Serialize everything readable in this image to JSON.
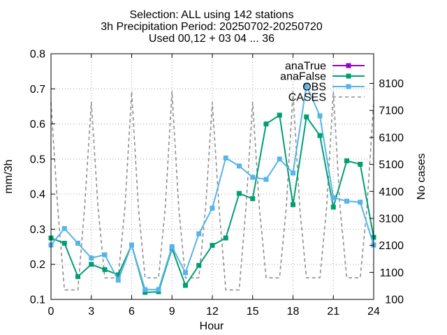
{
  "chart_data": {
    "type": "line",
    "title_lines": [
      "Selection: ALL using   142 stations",
      "3h Precipitation   Period: 20250702-20250720",
      "Used 00,12 + 03 04 ... 36"
    ],
    "xlabel": "Hour",
    "ylabel": "mm/3h",
    "y2label": "No cases",
    "xlim": [
      0,
      24
    ],
    "ylim": [
      0.1,
      0.8
    ],
    "y2lim": [
      100,
      9200
    ],
    "xticks": [
      "0",
      "3",
      "6",
      "9",
      "12",
      "15",
      "18",
      "21",
      "24"
    ],
    "yticks": [
      "0.1",
      "0.2",
      "0.3",
      "0.4",
      "0.5",
      "0.6",
      "0.7",
      "0.8"
    ],
    "y2ticks": [
      "100",
      "1100",
      "2100",
      "3100",
      "4100",
      "5100",
      "6100",
      "7100",
      "8100"
    ],
    "grid": true,
    "legend_position": "top-right",
    "series": [
      {
        "name": "anaTrue",
        "color": "#9400d3",
        "axis": "y",
        "x": [],
        "values": []
      },
      {
        "name": "anaFalse",
        "color": "#009e73",
        "axis": "y",
        "x": [
          0,
          1,
          2,
          3,
          4,
          5,
          6,
          7,
          8,
          9,
          10,
          11,
          12,
          13,
          14,
          15,
          16,
          17,
          18,
          19,
          20,
          21,
          22,
          23,
          24
        ],
        "values": [
          0.275,
          0.26,
          0.165,
          0.2,
          0.185,
          0.17,
          0.255,
          0.12,
          0.122,
          0.245,
          0.14,
          0.197,
          0.254,
          0.275,
          0.402,
          0.387,
          0.6,
          0.625,
          0.37,
          0.62,
          0.567,
          0.363,
          0.495,
          0.485,
          0.277
        ]
      },
      {
        "name": "OBS",
        "color": "#56b4e9",
        "axis": "y",
        "x": [
          0,
          1,
          2,
          3,
          4,
          5,
          6,
          7,
          8,
          9,
          10,
          11,
          12,
          13,
          14,
          15,
          16,
          17,
          18,
          19,
          20,
          21,
          22,
          23,
          24
        ],
        "values": [
          0.255,
          0.302,
          0.26,
          0.218,
          0.227,
          0.155,
          0.255,
          0.128,
          0.128,
          0.25,
          0.176,
          0.287,
          0.36,
          0.503,
          0.48,
          0.448,
          0.442,
          0.5,
          0.46,
          0.71,
          0.623,
          0.39,
          0.38,
          0.377,
          0.255
        ]
      },
      {
        "name": "CASES",
        "color": "#909090",
        "axis": "y2",
        "dashed": true,
        "x": [
          0,
          0.5,
          1,
          1.5,
          2,
          2.5,
          3,
          3.5,
          4,
          4.5,
          5,
          5.5,
          6,
          6.5,
          7,
          7.5,
          8,
          8.5,
          9,
          9.5,
          10,
          10.5,
          11,
          11.5,
          12,
          12.5,
          13,
          13.5,
          14,
          14.5,
          15,
          15.5,
          16,
          16.5,
          17,
          17.5,
          18,
          18.5,
          19,
          19.5,
          20,
          20.5,
          21,
          21.5,
          22,
          22.5,
          23,
          23.5,
          24
        ],
        "values": [
          7400,
          3500,
          450,
          450,
          450,
          3500,
          7400,
          3500,
          900,
          900,
          900,
          3500,
          7800,
          3500,
          900,
          900,
          900,
          3500,
          7800,
          3500,
          900,
          900,
          900,
          3500,
          7400,
          3500,
          450,
          450,
          450,
          3500,
          7400,
          3500,
          900,
          900,
          900,
          3500,
          7800,
          3500,
          900,
          900,
          900,
          3500,
          7800,
          3500,
          900,
          900,
          900,
          3500,
          7400
        ]
      }
    ]
  }
}
